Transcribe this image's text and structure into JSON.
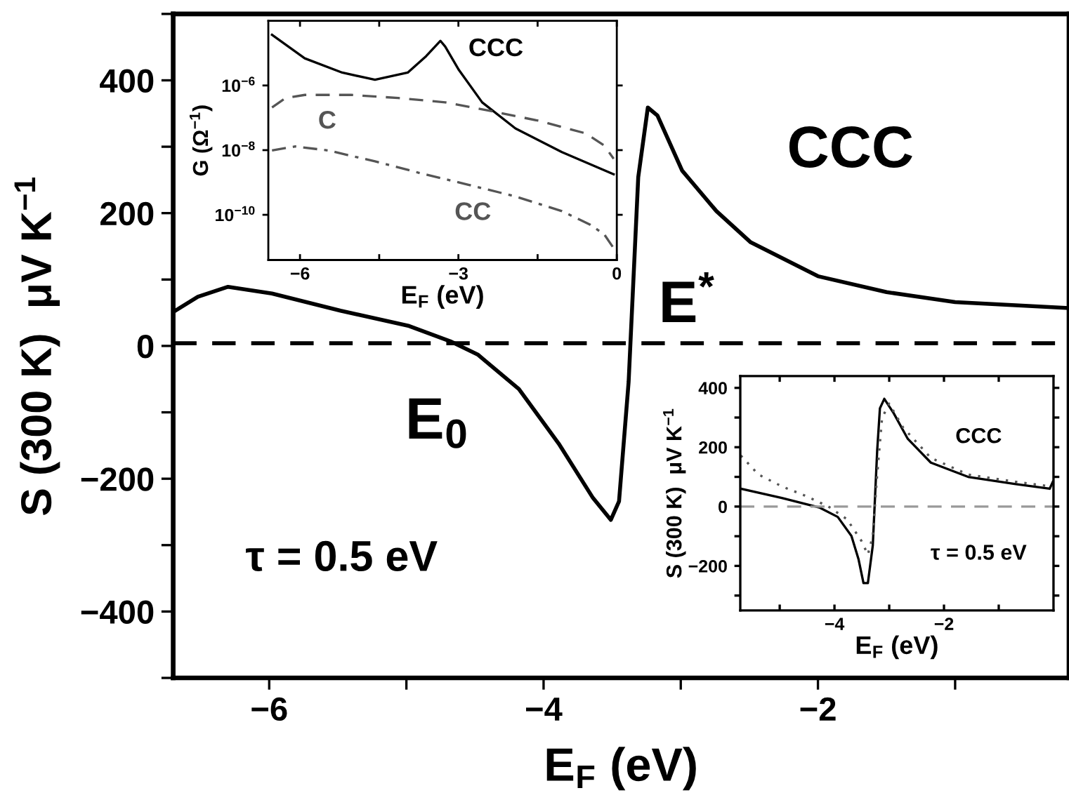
{
  "chart_data": [
    {
      "type": "line",
      "xlabel": "E$_{F}$ (eV)",
      "ylabel": "S (300 K)  μV K$^{−1}$",
      "x": [
        -6.7,
        -6.52,
        -6.3,
        -5.98,
        -5.48,
        -4.98,
        -4.68,
        -4.48,
        -4.18,
        -3.89,
        -3.64,
        -3.51,
        -3.45,
        -3.38,
        -3.31,
        -3.24,
        -3.17,
        -2.99,
        -2.74,
        -2.49,
        -2.0,
        -1.5,
        -1.0,
        -0.17
      ],
      "series": [
        {
          "color": "#000000",
          "line_style": "solid",
          "values": [
            51,
            74,
            89,
            79,
            53,
            30,
            7,
            -13,
            -65,
            -147,
            -229,
            -262,
            -234,
            -54,
            254,
            359,
            347,
            264,
            203,
            156,
            105,
            81,
            66,
            57
          ]
        }
      ],
      "xlim": [
        -6.7,
        -0.17
      ],
      "ylim": [
        -500,
        500
      ],
      "xticks": [
        -6,
        {
          "value": -5,
          "label": null
        },
        -4,
        {
          "value": -3,
          "label": null
        },
        -2,
        {
          "value": -1,
          "label": null
        }
      ],
      "yticks": [
        {
          "value": -500,
          "label": null
        },
        -400,
        {
          "value": -300,
          "label": null
        },
        -200,
        {
          "value": -100,
          "label": null
        },
        0,
        {
          "value": 100,
          "label": null
        },
        200,
        {
          "value": 300,
          "label": null
        },
        400,
        {
          "value": 500,
          "label": null
        }
      ],
      "ref_lines": [
        {
          "axis": "y",
          "value": 4,
          "color": "#000000",
          "line_style": "dashed"
        }
      ],
      "annotations": [
        "CCC",
        "E$^{*}$",
        "E$_{0}$",
        "τ = 0.5 eV"
      ],
      "grid": false,
      "legend": false
    },
    {
      "type": "line",
      "xlabel": "E$_{F}$ (eV)",
      "ylabel": "G (Ω$^{−1}$)",
      "log": "y",
      "series": [
        {
          "name": "CCC",
          "color": "#000000",
          "line_style": "solid",
          "x": [
            -6.53,
            -5.91,
            -5.2,
            -4.58,
            -3.96,
            -3.61,
            -3.34,
            -3.25,
            -2.99,
            -2.55,
            -1.92,
            -1.04,
            -0.06
          ],
          "values": [
            3.7e-05,
            6.9e-06,
            2.5e-06,
            1.5e-06,
            2.5e-06,
            8.1e-06,
            2.4e-05,
            1.6e-05,
            3e-06,
            3e-07,
            4.7e-08,
            8.7e-09,
            1.8e-09
          ]
        },
        {
          "name": "C",
          "color": "#555555",
          "line_style": "dashed",
          "x": [
            -6.53,
            -6.27,
            -5.91,
            -5.03,
            -4.14,
            -3.25,
            -2.37,
            -1.48,
            -0.59,
            -0.24,
            -0.06
          ],
          "values": [
            2.1e-07,
            4.1e-07,
            5.1e-07,
            5.1e-07,
            4.1e-07,
            3e-07,
            1.6e-07,
            8.1e-08,
            3.3e-08,
            1.4e-08,
            5.4e-09
          ]
        },
        {
          "name": "CC",
          "color": "#555555",
          "line_style": "dashdot",
          "x": [
            -6.53,
            -6.09,
            -5.47,
            -4.58,
            -3.7,
            -2.81,
            -1.92,
            -1.04,
            -0.51,
            -0.24,
            -0.06
          ],
          "values": [
            9.8e-09,
            1.3e-08,
            9.8e-09,
            4.5e-09,
            1.9e-09,
            8.5e-10,
            3.7e-10,
            1.3e-10,
            5e-11,
            2.5e-11,
            9.3e-12
          ]
        }
      ],
      "xlim": [
        -6.6,
        0
      ],
      "ylim": [
        4e-12,
        0.0001
      ],
      "xticks": [
        -6,
        {
          "value": -4.5,
          "label": null
        },
        -3,
        {
          "value": -1.5,
          "label": null
        },
        0
      ],
      "yticks": [
        {
          "value": 1e-10,
          "label": "10$^{−10}$"
        },
        {
          "value": 1e-08,
          "label": "10$^{−8}$"
        },
        {
          "value": 1e-06,
          "label": "10$^{−6}$"
        }
      ],
      "grid": false
    },
    {
      "type": "line",
      "xlabel": "E$_{F}$ (eV)",
      "ylabel": "S (300 K)  μV K$^{−1}$",
      "series": [
        {
          "color": "#000000",
          "line_style": "solid",
          "x": [
            -5.71,
            -4.96,
            -4.28,
            -3.94,
            -3.69,
            -3.56,
            -3.47,
            -3.39,
            -3.3,
            -3.22,
            -3.17,
            -3.09,
            -2.92,
            -2.66,
            -2.24,
            -1.56,
            -0.71,
            -0.07,
            -0.01
          ],
          "values": [
            60,
            29,
            -3,
            -35,
            -99,
            -178,
            -258,
            -258,
            -131,
            188,
            331,
            363,
            315,
            228,
            148,
            100,
            76,
            60,
            84
          ]
        },
        {
          "color": "#555555",
          "line_style": "dotted",
          "x": [
            -5.71,
            -5.39,
            -4.96,
            -4.54,
            -4.11,
            -3.77,
            -3.51,
            -3.39,
            -3.3,
            -3.22,
            -3.13,
            -3.0,
            -2.75,
            -2.24,
            -1.56,
            -0.71,
            -0.07
          ],
          "values": [
            172,
            108,
            68,
            37,
            0,
            -43,
            -115,
            -162,
            -99,
            108,
            299,
            347,
            267,
            164,
            108,
            84,
            68
          ]
        }
      ],
      "xlim": [
        -5.72,
        0
      ],
      "ylim": [
        -350,
        440
      ],
      "xticks": [
        {
          "value": -5,
          "label": null
        },
        -4,
        {
          "value": -3,
          "label": null
        },
        -2,
        {
          "value": -1,
          "label": null
        }
      ],
      "yticks": [
        {
          "value": -300,
          "label": null
        },
        -200,
        {
          "value": -100,
          "label": null
        },
        0,
        {
          "value": 100,
          "label": null
        },
        200,
        {
          "value": 300,
          "label": null
        },
        400
      ],
      "ref_lines": [
        {
          "axis": "y",
          "value": 0,
          "color": "#999999",
          "line_style": "dashed"
        }
      ],
      "annotations": [
        "CCC",
        "τ = 0.5 eV"
      ],
      "grid": false,
      "legend": false
    }
  ]
}
